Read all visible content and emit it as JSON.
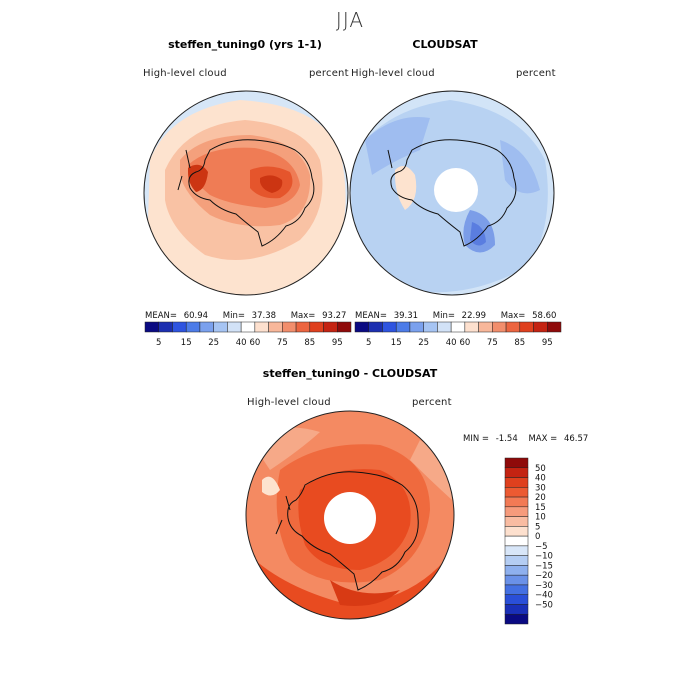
{
  "figure": {
    "season": "JJA",
    "panels": [
      {
        "title": "steffen_tuning0 (yrs 1-1)",
        "left_label": "High-level cloud",
        "right_label": "percent",
        "stats": {
          "mean_label": "MEAN=",
          "mean": "60.94",
          "min_label": "Min=",
          "min": "37.38",
          "max_label": "Max=",
          "max": "93.27"
        },
        "fill_colors": [
          "#d6e6f7",
          "#fde3cf",
          "#f9c2a4",
          "#f4a07c",
          "#ef7c55",
          "#e5552c",
          "#cc3512"
        ]
      },
      {
        "title": "CLOUDSAT",
        "left_label": "High-level cloud",
        "right_label": "percent",
        "stats": {
          "mean_label": "MEAN=",
          "mean": "39.31",
          "min_label": "Min=",
          "min": "22.99",
          "max_label": "Max=",
          "max": "58.60"
        },
        "fill_colors": [
          "#d2e4f7",
          "#b8d2f2",
          "#9fbdf0",
          "#7b9de8",
          "#5a7de0",
          "#fde3cf"
        ]
      },
      {
        "title": "steffen_tuning0 - CLOUDSAT",
        "left_label": "High-level cloud",
        "right_label": "percent",
        "minmax": {
          "min_label": "MIN =",
          "min": "-1.54",
          "max_label": "MAX =",
          "max": "46.57"
        },
        "fill_colors": [
          "#f6a988",
          "#f48a62",
          "#ef6a3e",
          "#e84b20",
          "#d83a14",
          "#fde3cf"
        ]
      }
    ],
    "colorbar_main": {
      "colors": [
        "#0a0a82",
        "#1c2fb0",
        "#2e54e0",
        "#4d7ce8",
        "#7ba1ee",
        "#a6c4f3",
        "#d2e2f7",
        "#ffffff",
        "#fde0ce",
        "#f8b79a",
        "#f28e6c",
        "#ec6540",
        "#df401e",
        "#c42312",
        "#8f0a0a"
      ],
      "tick_labels": [
        "5",
        "15",
        "25",
        "40",
        "60",
        "75",
        "85",
        "95"
      ]
    },
    "colorbar_diff": {
      "colors": [
        "#8f0a0a",
        "#c42312",
        "#df401e",
        "#ec5a32",
        "#f27a55",
        "#f69b7c",
        "#f9bca2",
        "#fde0ce",
        "#ffffff",
        "#d8e6f8",
        "#b4cdf3",
        "#8eb0ee",
        "#6a91e8",
        "#4470e2",
        "#2a4fd8",
        "#1a30b8",
        "#0a0a82"
      ],
      "labels": [
        "50",
        "40",
        "30",
        "20",
        "15",
        "10",
        "5",
        "0",
        "−5",
        "−10",
        "−15",
        "−20",
        "−30",
        "−40",
        "−50"
      ]
    }
  }
}
